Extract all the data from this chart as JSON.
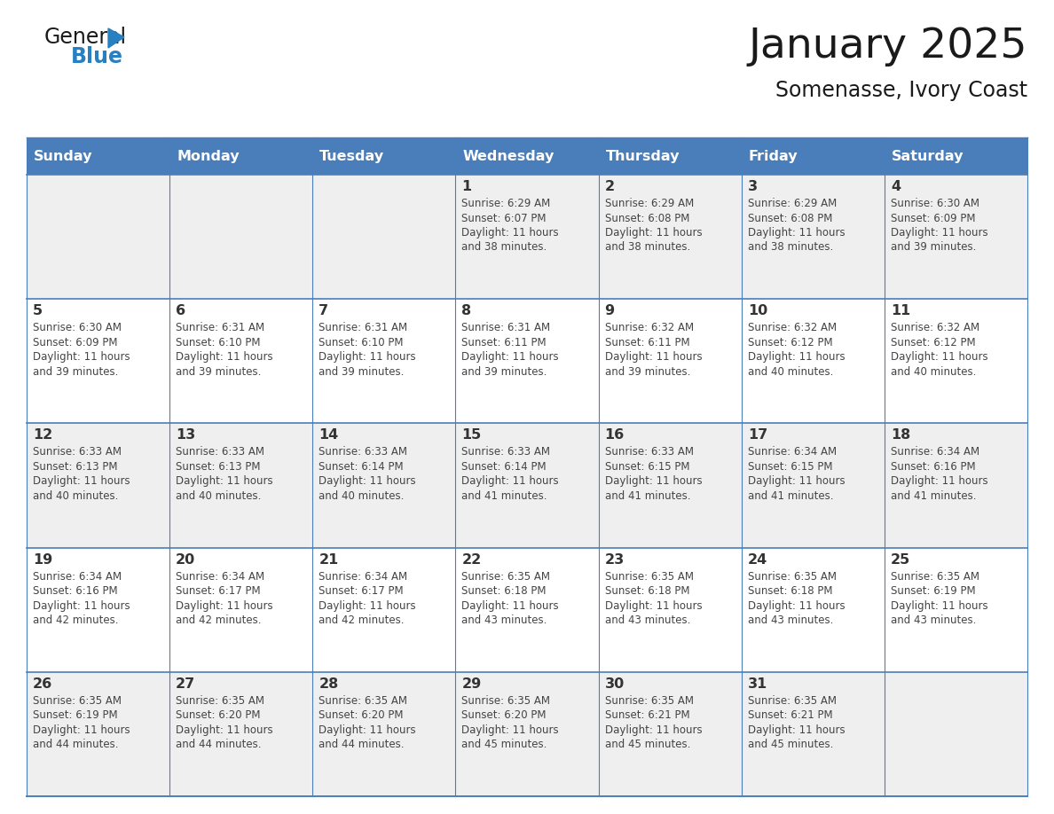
{
  "title": "January 2025",
  "subtitle": "Somenasse, Ivory Coast",
  "days_of_week": [
    "Sunday",
    "Monday",
    "Tuesday",
    "Wednesday",
    "Thursday",
    "Friday",
    "Saturday"
  ],
  "header_bg": "#4A7EBB",
  "header_text": "#FFFFFF",
  "cell_bg_light": "#EFEFEF",
  "cell_bg_white": "#FFFFFF",
  "cell_border": "#4A7EBB",
  "day_number_color": "#333333",
  "cell_text_color": "#444444",
  "title_color": "#1a1a1a",
  "subtitle_color": "#1a1a1a",
  "calendar": [
    [
      null,
      null,
      null,
      {
        "day": 1,
        "sunrise": "6:29 AM",
        "sunset": "6:07 PM",
        "daylight_h": "11 hours",
        "daylight_m": "and 38 minutes."
      },
      {
        "day": 2,
        "sunrise": "6:29 AM",
        "sunset": "6:08 PM",
        "daylight_h": "11 hours",
        "daylight_m": "and 38 minutes."
      },
      {
        "day": 3,
        "sunrise": "6:29 AM",
        "sunset": "6:08 PM",
        "daylight_h": "11 hours",
        "daylight_m": "and 38 minutes."
      },
      {
        "day": 4,
        "sunrise": "6:30 AM",
        "sunset": "6:09 PM",
        "daylight_h": "11 hours",
        "daylight_m": "and 39 minutes."
      }
    ],
    [
      {
        "day": 5,
        "sunrise": "6:30 AM",
        "sunset": "6:09 PM",
        "daylight_h": "11 hours",
        "daylight_m": "and 39 minutes."
      },
      {
        "day": 6,
        "sunrise": "6:31 AM",
        "sunset": "6:10 PM",
        "daylight_h": "11 hours",
        "daylight_m": "and 39 minutes."
      },
      {
        "day": 7,
        "sunrise": "6:31 AM",
        "sunset": "6:10 PM",
        "daylight_h": "11 hours",
        "daylight_m": "and 39 minutes."
      },
      {
        "day": 8,
        "sunrise": "6:31 AM",
        "sunset": "6:11 PM",
        "daylight_h": "11 hours",
        "daylight_m": "and 39 minutes."
      },
      {
        "day": 9,
        "sunrise": "6:32 AM",
        "sunset": "6:11 PM",
        "daylight_h": "11 hours",
        "daylight_m": "and 39 minutes."
      },
      {
        "day": 10,
        "sunrise": "6:32 AM",
        "sunset": "6:12 PM",
        "daylight_h": "11 hours",
        "daylight_m": "and 40 minutes."
      },
      {
        "day": 11,
        "sunrise": "6:32 AM",
        "sunset": "6:12 PM",
        "daylight_h": "11 hours",
        "daylight_m": "and 40 minutes."
      }
    ],
    [
      {
        "day": 12,
        "sunrise": "6:33 AM",
        "sunset": "6:13 PM",
        "daylight_h": "11 hours",
        "daylight_m": "and 40 minutes."
      },
      {
        "day": 13,
        "sunrise": "6:33 AM",
        "sunset": "6:13 PM",
        "daylight_h": "11 hours",
        "daylight_m": "and 40 minutes."
      },
      {
        "day": 14,
        "sunrise": "6:33 AM",
        "sunset": "6:14 PM",
        "daylight_h": "11 hours",
        "daylight_m": "and 40 minutes."
      },
      {
        "day": 15,
        "sunrise": "6:33 AM",
        "sunset": "6:14 PM",
        "daylight_h": "11 hours",
        "daylight_m": "and 41 minutes."
      },
      {
        "day": 16,
        "sunrise": "6:33 AM",
        "sunset": "6:15 PM",
        "daylight_h": "11 hours",
        "daylight_m": "and 41 minutes."
      },
      {
        "day": 17,
        "sunrise": "6:34 AM",
        "sunset": "6:15 PM",
        "daylight_h": "11 hours",
        "daylight_m": "and 41 minutes."
      },
      {
        "day": 18,
        "sunrise": "6:34 AM",
        "sunset": "6:16 PM",
        "daylight_h": "11 hours",
        "daylight_m": "and 41 minutes."
      }
    ],
    [
      {
        "day": 19,
        "sunrise": "6:34 AM",
        "sunset": "6:16 PM",
        "daylight_h": "11 hours",
        "daylight_m": "and 42 minutes."
      },
      {
        "day": 20,
        "sunrise": "6:34 AM",
        "sunset": "6:17 PM",
        "daylight_h": "11 hours",
        "daylight_m": "and 42 minutes."
      },
      {
        "day": 21,
        "sunrise": "6:34 AM",
        "sunset": "6:17 PM",
        "daylight_h": "11 hours",
        "daylight_m": "and 42 minutes."
      },
      {
        "day": 22,
        "sunrise": "6:35 AM",
        "sunset": "6:18 PM",
        "daylight_h": "11 hours",
        "daylight_m": "and 43 minutes."
      },
      {
        "day": 23,
        "sunrise": "6:35 AM",
        "sunset": "6:18 PM",
        "daylight_h": "11 hours",
        "daylight_m": "and 43 minutes."
      },
      {
        "day": 24,
        "sunrise": "6:35 AM",
        "sunset": "6:18 PM",
        "daylight_h": "11 hours",
        "daylight_m": "and 43 minutes."
      },
      {
        "day": 25,
        "sunrise": "6:35 AM",
        "sunset": "6:19 PM",
        "daylight_h": "11 hours",
        "daylight_m": "and 43 minutes."
      }
    ],
    [
      {
        "day": 26,
        "sunrise": "6:35 AM",
        "sunset": "6:19 PM",
        "daylight_h": "11 hours",
        "daylight_m": "and 44 minutes."
      },
      {
        "day": 27,
        "sunrise": "6:35 AM",
        "sunset": "6:20 PM",
        "daylight_h": "11 hours",
        "daylight_m": "and 44 minutes."
      },
      {
        "day": 28,
        "sunrise": "6:35 AM",
        "sunset": "6:20 PM",
        "daylight_h": "11 hours",
        "daylight_m": "and 44 minutes."
      },
      {
        "day": 29,
        "sunrise": "6:35 AM",
        "sunset": "6:20 PM",
        "daylight_h": "11 hours",
        "daylight_m": "and 45 minutes."
      },
      {
        "day": 30,
        "sunrise": "6:35 AM",
        "sunset": "6:21 PM",
        "daylight_h": "11 hours",
        "daylight_m": "and 45 minutes."
      },
      {
        "day": 31,
        "sunrise": "6:35 AM",
        "sunset": "6:21 PM",
        "daylight_h": "11 hours",
        "daylight_m": "and 45 minutes."
      },
      null
    ]
  ],
  "logo_general_color": "#1a1a1a",
  "logo_blue_color": "#2980C0",
  "logo_triangle_color": "#2980C0"
}
